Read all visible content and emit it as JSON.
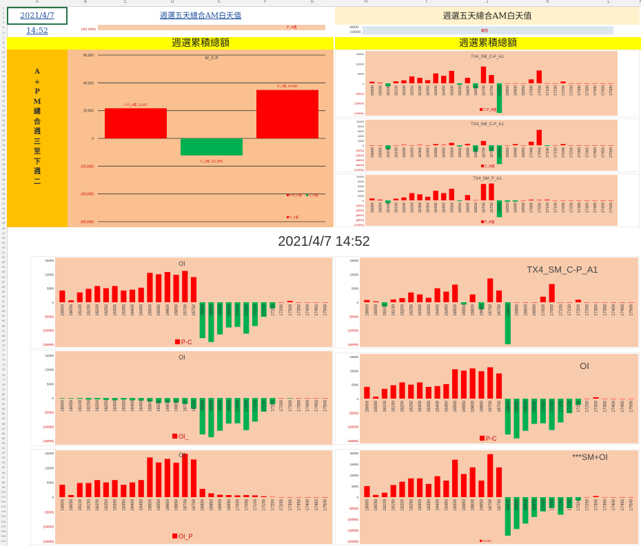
{
  "sheet": {
    "columns": [
      "A",
      "B",
      "C",
      "D",
      "E",
      "F",
      "G",
      "H",
      "I",
      "J",
      "K",
      "L",
      "M"
    ],
    "top_date_link": "2021/4/7 14:52",
    "left_title_link": "週選五天總合AM白天值",
    "right_title": "週選五天總合AM白天值",
    "left_week_header": "週選累積總額",
    "right_week_header": "週選累積總額",
    "vertical_label": [
      "A",
      "+",
      "P",
      "M",
      "總",
      "合",
      "週",
      "三",
      "至",
      "下",
      "週",
      "二"
    ],
    "center_timestamp": "2021/4/7 14:52",
    "top_strip_left_label": "(60,000)",
    "top_strip_left_legend": "P_A值",
    "top_strip_right_ticks": [
      "-8000",
      "-10000"
    ],
    "top_strip_right_legend": "繼值"
  },
  "chart_data": [
    {
      "id": "wcp",
      "type": "bar",
      "title": "W_C-P",
      "categories": [
        "C-P_A值",
        "C_A值",
        "P_A值"
      ],
      "values": [
        21657,
        -12255,
        34883
      ],
      "data_labels": [
        "C-P_A值, 21,657",
        "C_A值, (12,255)",
        "P_A值, 34,883"
      ],
      "colors": [
        "#ff0000",
        "#00b050",
        "#ff0000"
      ],
      "ylim": [
        -60000,
        60000
      ],
      "yticks": [
        "60,000",
        "40,000",
        "20,000",
        "0",
        "(20,000)",
        "(40,000)",
        "(60,000)"
      ],
      "legend": [
        "C-P_A值",
        "C_A值",
        "P_A值"
      ]
    },
    {
      "id": "r1",
      "type": "bar",
      "title": "TX4_SM_C-P_A1",
      "legend": "C-P_A值",
      "categories": [
        "16000",
        "16050",
        "16100",
        "16150",
        "16200",
        "16250",
        "16300",
        "16350",
        "16400",
        "16450",
        "16500",
        "16550",
        "16600",
        "16650",
        "16700",
        "16750",
        "16800",
        "16850",
        "16900",
        "16950",
        "17000",
        "17050",
        "17100",
        "17150",
        "17200",
        "17250",
        "17300",
        "17350",
        "17400",
        "17450",
        "17500"
      ],
      "values": [
        800,
        300,
        -1500,
        1000,
        1500,
        3500,
        2800,
        1600,
        5000,
        3800,
        6300,
        -800,
        2800,
        -2500,
        8500,
        4200,
        -15000,
        0,
        0,
        0,
        2000,
        6500,
        0,
        0,
        900,
        0,
        0,
        0,
        0,
        0,
        0
      ],
      "ylim": [
        -15000,
        15000
      ],
      "yticks": [
        "15000",
        "10000",
        "5000",
        "0",
        "(5000)",
        "(10000)",
        "(15000)"
      ]
    },
    {
      "id": "r2",
      "type": "bar",
      "title": "TX4_SM_C-P_A1",
      "legend": "C_A值",
      "categories": [
        "16000",
        "16050",
        "16100",
        "16150",
        "16200",
        "16250",
        "16300",
        "16350",
        "16400",
        "16450",
        "16500",
        "16550",
        "16600",
        "16650",
        "16700",
        "16750",
        "16800",
        "16850",
        "16900",
        "16950",
        "17000",
        "17050",
        "17100",
        "17150",
        "17200",
        "17250",
        "17300",
        "17350",
        "17400",
        "17450",
        "17500"
      ],
      "values": [
        0,
        0,
        -1600,
        0,
        200,
        0,
        200,
        0,
        500,
        200,
        1000,
        -500,
        600,
        -2700,
        1800,
        -2400,
        -7800,
        0,
        500,
        0,
        1500,
        6400,
        -300,
        0,
        500,
        0,
        0,
        0,
        0,
        0,
        0
      ],
      "ylim": [
        -10000,
        10000
      ],
      "yticks": [
        "10000",
        "8000",
        "6000",
        "4000",
        "2000",
        "0",
        "(2000)",
        "(4000)",
        "(6000)",
        "(8000)",
        "(10000)"
      ]
    },
    {
      "id": "r3",
      "type": "bar",
      "title": "TX4_SM_P_A1",
      "legend": "P_A值",
      "categories": [
        "16000",
        "16050",
        "16100",
        "16150",
        "16200",
        "16250",
        "16300",
        "16350",
        "16400",
        "16450",
        "16500",
        "16550",
        "16600",
        "16650",
        "16700",
        "16750",
        "16800",
        "16850",
        "16900",
        "16950",
        "17000",
        "17050",
        "17100",
        "17150",
        "17200",
        "17250",
        "17300",
        "17350",
        "17400",
        "17450",
        "17500"
      ],
      "values": [
        800,
        300,
        -1200,
        700,
        1200,
        3000,
        2500,
        1500,
        4000,
        3000,
        4800,
        -300,
        2200,
        100,
        6800,
        7000,
        -7000,
        -600,
        -500,
        0,
        300,
        200,
        300,
        0,
        0,
        0,
        0,
        0,
        0,
        0,
        0
      ],
      "ylim": [
        -10000,
        10000
      ],
      "yticks": [
        "10000",
        "8000",
        "6000",
        "4000",
        "2000",
        "0",
        "(2000)",
        "(4000)",
        "(6000)",
        "(8000)",
        "(10000)"
      ]
    },
    {
      "id": "b1",
      "type": "bar",
      "title": "OI",
      "legend": "P-C",
      "categories": [
        "16000",
        "16050",
        "16100",
        "16150",
        "16200",
        "16250",
        "16300",
        "16350",
        "16400",
        "16450",
        "16500",
        "16550",
        "16600",
        "16650",
        "16700",
        "16750",
        "16800",
        "16850",
        "16900",
        "16950",
        "17000",
        "17050",
        "17100",
        "17150",
        "17200",
        "17250",
        "17300",
        "17350",
        "17400",
        "17450",
        "17500"
      ],
      "values": [
        4200,
        700,
        3500,
        4800,
        5800,
        5000,
        5800,
        4200,
        4500,
        5200,
        10500,
        10000,
        10800,
        9800,
        11200,
        9000,
        -12800,
        -14200,
        -11500,
        -9000,
        -8800,
        -11200,
        -8500,
        -5200,
        -2200,
        0,
        500,
        0,
        0,
        0,
        0
      ],
      "ylim": [
        -15000,
        15000
      ],
      "yticks": [
        "15000",
        "10000",
        "5000",
        "0",
        "(5000)",
        "(10000)",
        "(15000)"
      ]
    },
    {
      "id": "b2",
      "type": "bar",
      "title": "OI",
      "legend": "OI_",
      "categories": [
        "16000",
        "16050",
        "16100",
        "16150",
        "16200",
        "16250",
        "16300",
        "16350",
        "16400",
        "16450",
        "16500",
        "16550",
        "16600",
        "16650",
        "16700",
        "16750",
        "16800",
        "16850",
        "16900",
        "16950",
        "17000",
        "17050",
        "17100",
        "17150",
        "17200",
        "17250",
        "17300",
        "17350",
        "17400",
        "17450",
        "17500"
      ],
      "values": [
        -200,
        -200,
        -300,
        -600,
        -500,
        -700,
        -800,
        -600,
        -800,
        -900,
        -1200,
        -1800,
        -1600,
        -1600,
        -2100,
        -3800,
        -12800,
        -13800,
        -11500,
        -9000,
        -8900,
        -11300,
        -8300,
        -4800,
        -2200,
        0,
        -200,
        0,
        0,
        0,
        0
      ],
      "ylim": [
        -15000,
        15000
      ],
      "yticks": [
        "15000",
        "10000",
        "5000",
        "0",
        "(5000)",
        "(10000)",
        "(15000)"
      ]
    },
    {
      "id": "b3",
      "type": "bar",
      "title": "OI",
      "legend": "OI_P",
      "categories": [
        "16000",
        "16050",
        "16100",
        "16150",
        "16200",
        "16250",
        "16300",
        "16350",
        "16400",
        "16450",
        "16500",
        "16550",
        "16600",
        "16650",
        "16700",
        "16750",
        "16800",
        "16850",
        "16900",
        "16950",
        "17000",
        "17050",
        "17100",
        "17150",
        "17200",
        "17250",
        "17300",
        "17350",
        "17400",
        "17450",
        "17500"
      ],
      "values": [
        4200,
        700,
        4800,
        4800,
        5800,
        5000,
        5800,
        4200,
        5000,
        5800,
        13500,
        11800,
        13000,
        11700,
        14800,
        12800,
        2800,
        1300,
        800,
        700,
        600,
        700,
        600,
        300,
        100,
        0,
        0,
        0,
        0,
        0,
        0
      ],
      "ylim": [
        -15000,
        15000
      ],
      "yticks": [
        "15000",
        "10000",
        "5000",
        "0",
        "(5000)",
        "(10000)",
        "(15000)"
      ]
    },
    {
      "id": "b4",
      "type": "bar",
      "title": "TX4_SM_C-P_A1",
      "legend": "",
      "categories": [
        "16000",
        "16050",
        "16100",
        "16150",
        "16200",
        "16250",
        "16300",
        "16350",
        "16400",
        "16450",
        "16500",
        "16550",
        "16600",
        "16650",
        "16700",
        "16750",
        "16800",
        "16850",
        "16900",
        "16950",
        "17000",
        "17050",
        "17100",
        "17150",
        "17200",
        "17250",
        "17300",
        "17350",
        "17400",
        "17450",
        "17500"
      ],
      "values": [
        800,
        300,
        -1500,
        1000,
        1500,
        3500,
        2800,
        1600,
        5000,
        3800,
        6300,
        -800,
        2800,
        -2500,
        8500,
        4200,
        -15000,
        0,
        0,
        0,
        2000,
        6500,
        0,
        0,
        900,
        0,
        0,
        0,
        0,
        0,
        0
      ],
      "ylim": [
        -15000,
        15000
      ],
      "yticks": [
        "15000",
        "10000",
        "5000",
        "0",
        "(5000)",
        "(10000)",
        "(15000)"
      ]
    },
    {
      "id": "b5",
      "type": "bar",
      "title": "OI",
      "legend": "P-C",
      "categories": [
        "16000",
        "16050",
        "16100",
        "16150",
        "16200",
        "16250",
        "16300",
        "16350",
        "16400",
        "16450",
        "16500",
        "16550",
        "16600",
        "16650",
        "16700",
        "16750",
        "16800",
        "16850",
        "16900",
        "16950",
        "17000",
        "17050",
        "17100",
        "17150",
        "17200",
        "17250",
        "17300",
        "17350",
        "17400",
        "17450",
        "17500"
      ],
      "values": [
        4200,
        700,
        3500,
        4800,
        5800,
        5000,
        5800,
        4200,
        4500,
        5200,
        10500,
        10000,
        10800,
        9800,
        11200,
        9000,
        -12800,
        -14200,
        -11500,
        -9000,
        -8800,
        -11200,
        -8500,
        -5200,
        -2200,
        0,
        500,
        0,
        0,
        0,
        0
      ],
      "ylim": [
        -15000,
        15000
      ],
      "yticks": [
        "15000",
        "10000",
        "5000",
        "0",
        "(5000)",
        "(10000)",
        "(15000)"
      ]
    },
    {
      "id": "b6",
      "type": "bar",
      "title": "***SM+OI",
      "legend": "OI+SM",
      "categories": [
        "16000",
        "16050",
        "16100",
        "16150",
        "16200",
        "16250",
        "16300",
        "16350",
        "16400",
        "16450",
        "16500",
        "16550",
        "16600",
        "16650",
        "16700",
        "16750",
        "16800",
        "16850",
        "16900",
        "16950",
        "17000",
        "17050",
        "17100",
        "17150",
        "17200",
        "17250",
        "17300",
        "17350",
        "17400",
        "17450",
        "17500"
      ],
      "values": [
        5000,
        1000,
        2000,
        5500,
        7000,
        8500,
        8500,
        6000,
        9500,
        7500,
        17000,
        10500,
        13500,
        7500,
        19500,
        13500,
        -17500,
        -14500,
        -12000,
        -9000,
        -6500,
        -5000,
        -8000,
        -5000,
        -1500,
        0,
        500,
        0,
        0,
        0,
        0
      ],
      "ylim": [
        -20000,
        20000
      ],
      "yticks": [
        "20000",
        "15000",
        "10000",
        "5000",
        "0",
        "(5000)",
        "(10000)",
        "(15000)",
        "(20000)"
      ]
    }
  ]
}
